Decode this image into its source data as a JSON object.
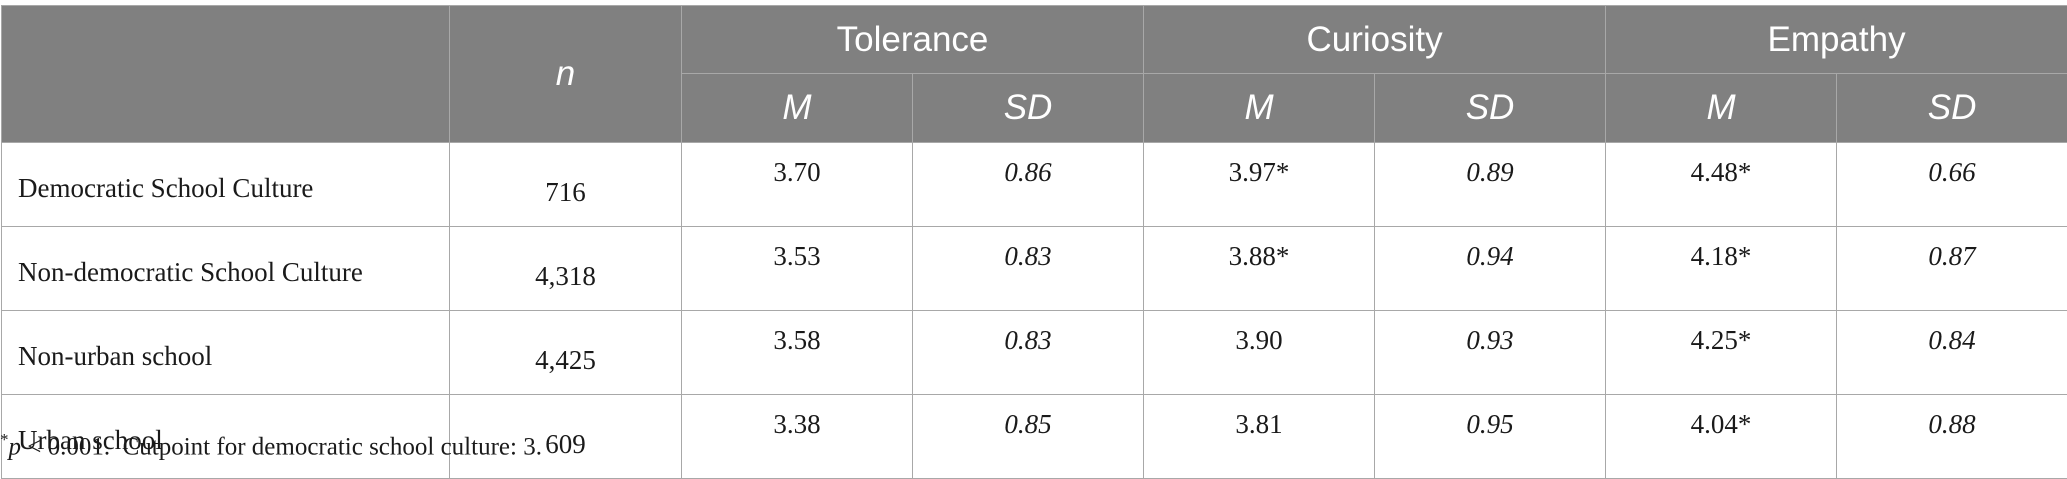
{
  "table": {
    "n_header": "n",
    "groups": [
      "Tolerance",
      "Curiosity",
      "Empathy"
    ],
    "sub_headers": [
      "M",
      "SD",
      "M",
      "SD",
      "M",
      "SD"
    ],
    "rows": [
      {
        "label": "Democratic School Culture",
        "n": "716",
        "tol_m": "3.70",
        "tol_sd": "0.86",
        "cur_m": "3.97*",
        "cur_sd": "0.89",
        "emp_m": "4.48*",
        "emp_sd": "0.66"
      },
      {
        "label": "Non-democratic School Culture",
        "n": "4,318",
        "tol_m": "3.53",
        "tol_sd": "0.83",
        "cur_m": "3.88*",
        "cur_sd": "0.94",
        "emp_m": "4.18*",
        "emp_sd": "0.87"
      },
      {
        "label": "Non-urban school",
        "n": "4,425",
        "tol_m": "3.58",
        "tol_sd": "0.83",
        "cur_m": "3.90",
        "cur_sd": "0.93",
        "emp_m": "4.25*",
        "emp_sd": "0.84"
      },
      {
        "label": "Urban school",
        "n": "609",
        "tol_m": "3.38",
        "tol_sd": "0.85",
        "cur_m": "3.81",
        "cur_sd": "0.95",
        "emp_m": "4.04*",
        "emp_sd": "0.88"
      }
    ]
  },
  "footnote": {
    "marker": "*",
    "p_symbol": "p",
    "p_text": " < 0.001.",
    "cutpoint": "Cutpoint for democratic school culture: 3."
  },
  "colors": {
    "header_bg": "#808080",
    "header_text": "#ffffff",
    "grid": "#a8a8a8"
  }
}
